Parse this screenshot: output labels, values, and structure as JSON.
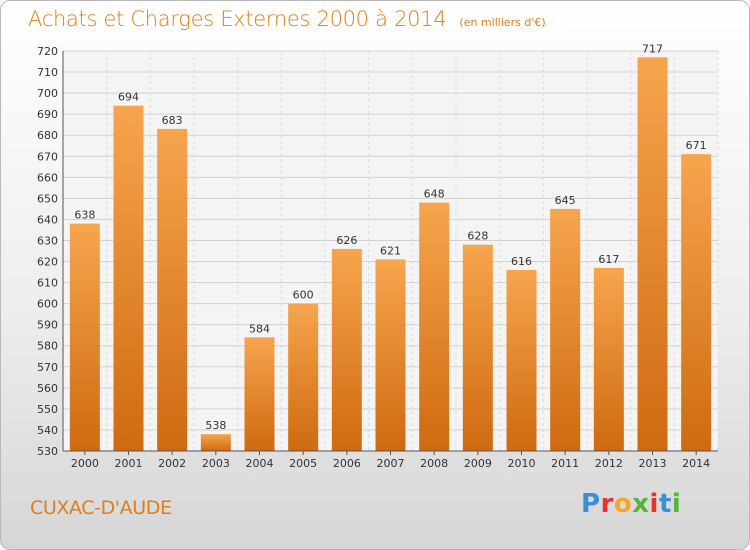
{
  "header": {
    "title": "Achats et Charges Externes 2000 à 2014",
    "subtitle": "(en milliers d'€)"
  },
  "footer": {
    "city": "CUXAC-D'AUDE",
    "brand": {
      "letters": [
        "P",
        "r",
        "o",
        "x",
        "i",
        "t",
        "i"
      ],
      "colors": [
        "#3a8fd6",
        "#e8322d",
        "#f5a623",
        "#56b33b",
        "#e8322d",
        "#3a8fd6",
        "#56b33b"
      ]
    }
  },
  "colors": {
    "bar_top": "#f6a54e",
    "bar_bottom": "#cf6a10",
    "accent": "#e07d1a"
  },
  "chart_data": {
    "type": "bar",
    "categories": [
      "2000",
      "2001",
      "2002",
      "2003",
      "2004",
      "2005",
      "2006",
      "2007",
      "2008",
      "2009",
      "2010",
      "2011",
      "2012",
      "2013",
      "2014"
    ],
    "values": [
      638,
      694,
      683,
      538,
      584,
      600,
      626,
      621,
      648,
      628,
      616,
      645,
      617,
      717,
      671
    ],
    "title": "Achats et Charges Externes 2000 à 2014",
    "subtitle": "(en milliers d'€)",
    "ylim": [
      530,
      720
    ],
    "yticks": [
      530,
      540,
      550,
      560,
      570,
      580,
      590,
      600,
      610,
      620,
      630,
      640,
      650,
      660,
      670,
      680,
      690,
      700,
      710,
      720
    ],
    "grid": true,
    "data_labels": true
  }
}
